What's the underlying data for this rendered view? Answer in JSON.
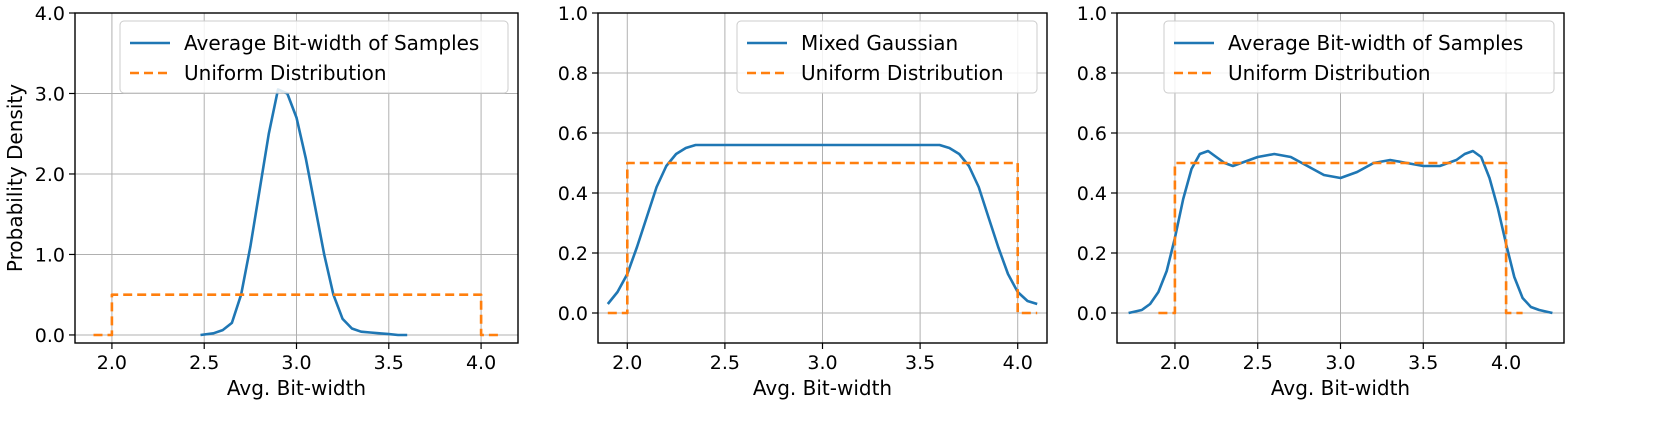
{
  "colors": {
    "kde": "#1f77b4",
    "uniform": "#ff7f0e",
    "grid": "#b0b0b0"
  },
  "chart_data": [
    {
      "type": "line",
      "xlabel": "Avg. Bit-width",
      "ylabel": "Probability Density",
      "xlim": [
        1.8,
        4.2
      ],
      "ylim": [
        -0.1,
        4.0
      ],
      "xticks": [
        2.0,
        2.5,
        3.0,
        3.5,
        4.0
      ],
      "xtick_labels": [
        "2.0",
        "2.5",
        "3.0",
        "3.5",
        "4.0"
      ],
      "yticks": [
        0.0,
        1.0,
        2.0,
        3.0,
        4.0
      ],
      "ytick_labels": [
        "0.0",
        "1.0",
        "2.0",
        "3.0",
        "4.0"
      ],
      "grid": true,
      "legend_position": "upper right",
      "series": [
        {
          "name": "Average Bit-width of Samples",
          "style": "solid",
          "color": "#1f77b4",
          "x": [
            2.48,
            2.55,
            2.6,
            2.65,
            2.7,
            2.75,
            2.8,
            2.85,
            2.9,
            2.95,
            3.0,
            3.05,
            3.1,
            3.15,
            3.2,
            3.25,
            3.3,
            3.35,
            3.4,
            3.45,
            3.5,
            3.55,
            3.6
          ],
          "y": [
            0.0,
            0.02,
            0.06,
            0.15,
            0.5,
            1.1,
            1.8,
            2.5,
            3.05,
            3.0,
            2.7,
            2.2,
            1.6,
            1.0,
            0.5,
            0.2,
            0.08,
            0.04,
            0.03,
            0.02,
            0.01,
            0.0,
            0.0
          ]
        },
        {
          "name": "Uniform Distribution",
          "style": "dashed",
          "color": "#ff7f0e",
          "x": [
            1.9,
            2.0,
            2.0,
            4.0,
            4.0,
            4.1
          ],
          "y": [
            0.0,
            0.0,
            0.5,
            0.5,
            0.0,
            0.0
          ]
        }
      ]
    },
    {
      "type": "line",
      "xlabel": "Avg. Bit-width",
      "ylabel": "",
      "xlim": [
        1.85,
        4.15
      ],
      "ylim": [
        -0.1,
        1.0
      ],
      "xticks": [
        2.0,
        2.5,
        3.0,
        3.5,
        4.0
      ],
      "xtick_labels": [
        "2.0",
        "2.5",
        "3.0",
        "3.5",
        "4.0"
      ],
      "yticks": [
        0.0,
        0.2,
        0.4,
        0.6,
        0.8,
        1.0
      ],
      "ytick_labels": [
        "0.0",
        "0.2",
        "0.4",
        "0.6",
        "0.8",
        "1.0"
      ],
      "grid": true,
      "legend_position": "upper right",
      "series": [
        {
          "name": "Mixed Gaussian",
          "style": "solid",
          "color": "#1f77b4",
          "x": [
            1.9,
            1.95,
            2.0,
            2.05,
            2.1,
            2.15,
            2.2,
            2.25,
            2.3,
            2.35,
            2.4,
            2.5,
            2.75,
            3.0,
            3.25,
            3.5,
            3.6,
            3.65,
            3.7,
            3.75,
            3.8,
            3.85,
            3.9,
            3.95,
            4.0,
            4.05,
            4.1
          ],
          "y": [
            0.03,
            0.07,
            0.13,
            0.22,
            0.32,
            0.42,
            0.49,
            0.53,
            0.55,
            0.56,
            0.56,
            0.56,
            0.56,
            0.56,
            0.56,
            0.56,
            0.56,
            0.55,
            0.53,
            0.49,
            0.42,
            0.32,
            0.22,
            0.13,
            0.07,
            0.04,
            0.03
          ]
        },
        {
          "name": "Uniform Distribution",
          "style": "dashed",
          "color": "#ff7f0e",
          "x": [
            1.9,
            2.0,
            2.0,
            4.0,
            4.0,
            4.1
          ],
          "y": [
            0.0,
            0.0,
            0.5,
            0.5,
            0.0,
            0.0
          ]
        }
      ]
    },
    {
      "type": "line",
      "xlabel": "Avg. Bit-width",
      "ylabel": "",
      "xlim": [
        1.65,
        4.35
      ],
      "ylim": [
        -0.1,
        1.0
      ],
      "xticks": [
        2.0,
        2.5,
        3.0,
        3.5,
        4.0
      ],
      "xtick_labels": [
        "2.0",
        "2.5",
        "3.0",
        "3.5",
        "4.0"
      ],
      "yticks": [
        0.0,
        0.2,
        0.4,
        0.6,
        0.8,
        1.0
      ],
      "ytick_labels": [
        "0.0",
        "0.2",
        "0.4",
        "0.6",
        "0.8",
        "1.0"
      ],
      "grid": true,
      "legend_position": "upper right",
      "series": [
        {
          "name": "Average Bit-width of Samples",
          "style": "solid",
          "color": "#1f77b4",
          "x": [
            1.72,
            1.8,
            1.85,
            1.9,
            1.95,
            2.0,
            2.05,
            2.1,
            2.15,
            2.2,
            2.25,
            2.3,
            2.35,
            2.4,
            2.5,
            2.6,
            2.7,
            2.8,
            2.9,
            3.0,
            3.1,
            3.2,
            3.3,
            3.4,
            3.5,
            3.6,
            3.7,
            3.75,
            3.8,
            3.85,
            3.9,
            3.95,
            4.0,
            4.05,
            4.1,
            4.15,
            4.2,
            4.28
          ],
          "y": [
            0.0,
            0.01,
            0.03,
            0.07,
            0.14,
            0.25,
            0.38,
            0.48,
            0.53,
            0.54,
            0.52,
            0.5,
            0.49,
            0.5,
            0.52,
            0.53,
            0.52,
            0.49,
            0.46,
            0.45,
            0.47,
            0.5,
            0.51,
            0.5,
            0.49,
            0.49,
            0.51,
            0.53,
            0.54,
            0.52,
            0.45,
            0.35,
            0.23,
            0.12,
            0.05,
            0.02,
            0.01,
            0.0
          ]
        },
        {
          "name": "Uniform Distribution",
          "style": "dashed",
          "color": "#ff7f0e",
          "x": [
            1.9,
            2.0,
            2.0,
            4.0,
            4.0,
            4.1
          ],
          "y": [
            0.0,
            0.0,
            0.5,
            0.5,
            0.0,
            0.0
          ]
        }
      ]
    }
  ]
}
